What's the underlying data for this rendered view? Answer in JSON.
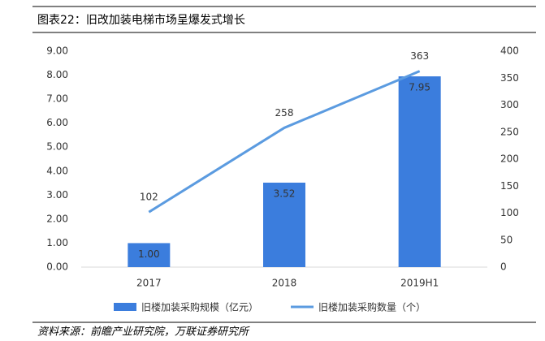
{
  "chart_data": {
    "type": "bar_line",
    "title": "图表22：旧改加装电梯市场呈爆发式增长",
    "source": "资料来源：前瞻产业研究院，万联证券研究所",
    "categories": [
      "2017",
      "2018",
      "2019H1"
    ],
    "series": [
      {
        "name": "旧楼加装采购规模（亿元）",
        "type": "bar",
        "color": "#3b7ddd",
        "values": [
          1.0,
          3.52,
          7.95
        ],
        "value_labels": [
          "1.00",
          "3.52",
          "7.95"
        ]
      },
      {
        "name": "旧楼加装采购数量（个）",
        "type": "line",
        "axis": "y2",
        "color": "#5b9be0",
        "values": [
          102,
          258,
          363
        ]
      }
    ],
    "ylim": [
      0,
      9
    ],
    "yticks": [
      {
        "value": 0,
        "label": "0.00"
      },
      {
        "value": 1,
        "label": "1.00"
      },
      {
        "value": 2,
        "label": "2.00"
      },
      {
        "value": 3,
        "label": "3.00"
      },
      {
        "value": 4,
        "label": "4.00"
      },
      {
        "value": 5,
        "label": "5.00"
      },
      {
        "value": 6,
        "label": "6.00"
      },
      {
        "value": 7,
        "label": "7.00"
      },
      {
        "value": 8,
        "label": "8.00"
      },
      {
        "value": 9,
        "label": "9.00"
      }
    ],
    "y2lim": [
      0,
      400
    ],
    "y2ticks": [
      0,
      50,
      100,
      150,
      200,
      250,
      300,
      350,
      400
    ],
    "legend": "bottom"
  }
}
